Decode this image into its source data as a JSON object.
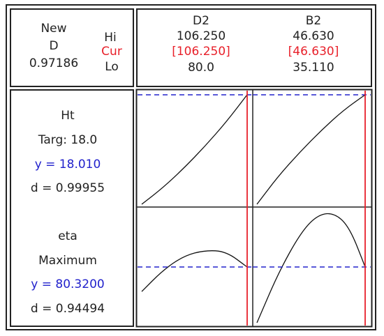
{
  "corner": {
    "new_label": "New",
    "d_label": "D",
    "d_value": "0.97186",
    "hi_label": "Hi",
    "cur_label": "Cur",
    "lo_label": "Lo"
  },
  "factors": [
    {
      "name": "D2",
      "hi": "106.250",
      "cur": "[106.250]",
      "lo": "80.0"
    },
    {
      "name": "B2",
      "hi": "46.630",
      "cur": "[46.630]",
      "lo": "35.110"
    }
  ],
  "responses": [
    {
      "name": "Ht",
      "goal": "Targ: 18.0",
      "y": "y = 18.010",
      "d": "d = 0.99955"
    },
    {
      "name": "eta",
      "goal": "Maximum",
      "y": "y = 80.3200",
      "d": "d = 0.94494"
    }
  ],
  "colors": {
    "current_line": "#e8202a",
    "optimal_line": "#2222cc",
    "curve": "#111111"
  },
  "chart_data": {
    "type": "line",
    "title": "",
    "factors": [
      {
        "name": "D2",
        "range": [
          80.0,
          106.25
        ],
        "current": 106.25
      },
      {
        "name": "B2",
        "range": [
          35.11,
          46.63
        ],
        "current": 46.63
      }
    ],
    "panels": [
      {
        "response": "Ht",
        "factor": "D2",
        "x": [
          80.0,
          85.25,
          90.5,
          95.75,
          101.0,
          106.25
        ],
        "y": [
          0.0,
          0.15,
          0.33,
          0.53,
          0.75,
          1.0
        ],
        "optimal_y": 1.0
      },
      {
        "response": "Ht",
        "factor": "B2",
        "x": [
          35.11,
          37.41,
          39.72,
          42.02,
          44.33,
          46.63
        ],
        "y": [
          0.0,
          0.26,
          0.48,
          0.68,
          0.86,
          1.0
        ],
        "optimal_y": 1.0
      },
      {
        "response": "eta",
        "factor": "D2",
        "x": [
          80.0,
          85.25,
          90.5,
          95.75,
          101.0,
          106.25
        ],
        "y": [
          0.28,
          0.47,
          0.6,
          0.65,
          0.64,
          0.5
        ],
        "optimal_y": 0.5
      },
      {
        "response": "eta",
        "factor": "B2",
        "x": [
          35.11,
          37.41,
          39.72,
          41.45,
          43.18,
          44.9,
          46.63
        ],
        "y": [
          0.0,
          0.45,
          0.8,
          0.96,
          0.99,
          0.87,
          0.5
        ],
        "optimal_y": 0.5
      }
    ]
  }
}
